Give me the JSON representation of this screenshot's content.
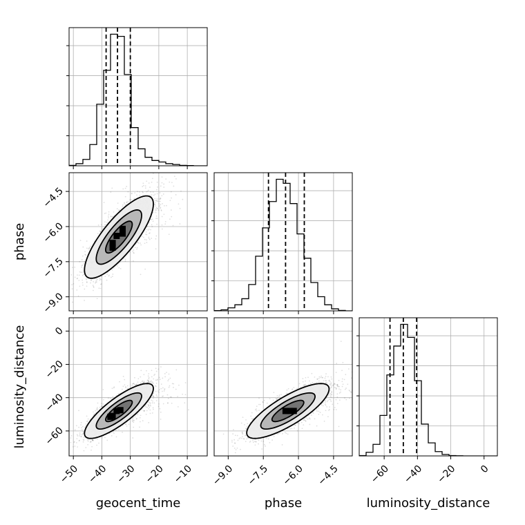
{
  "chart_data": {
    "type": "corner",
    "parameters": [
      "geocent_time",
      "phase",
      "luminosity_distance"
    ],
    "axis_labels": {
      "x": [
        "geocent_time",
        "phase",
        "luminosity_distance"
      ],
      "y": [
        "phase",
        "luminosity_distance"
      ]
    },
    "ranges": {
      "geocent_time": [
        -51.5,
        -3.0
      ],
      "phase": [
        -9.6,
        -3.7
      ],
      "luminosity_distance": [
        -75.0,
        8.0
      ]
    },
    "ticks": {
      "geocent_time": [
        -50,
        -40,
        -30,
        -20,
        -10
      ],
      "phase": [
        -9.0,
        -7.5,
        -6.0,
        -4.5
      ],
      "luminosity_distance": [
        -60,
        -40,
        -20,
        0
      ]
    },
    "tick_labels": {
      "geocent_time": [
        "−50",
        "−40",
        "−30",
        "−20",
        "−10"
      ],
      "phase": [
        "−9.0",
        "−7.5",
        "−6.0",
        "−4.5"
      ],
      "luminosity_distance": [
        "−60",
        "−40",
        "−20",
        "0"
      ]
    },
    "grid": true,
    "histograms": {
      "geocent_time": {
        "bin_edges": [
          -51.5,
          -49.075,
          -46.65,
          -44.225,
          -41.8,
          -39.375,
          -36.95,
          -34.525,
          -32.1,
          -29.675,
          -27.25,
          -24.825,
          -22.4,
          -19.975,
          -17.55,
          -15.125,
          -12.7,
          -10.275,
          -7.85,
          -5.425,
          -3.0
        ],
        "counts": [
          2,
          10,
          30,
          100,
          290,
          450,
          620,
          610,
          430,
          180,
          80,
          40,
          25,
          18,
          10,
          6,
          2,
          1,
          0,
          0
        ]
      },
      "phase": {
        "bin_edges": [
          -9.6,
          -9.305,
          -9.01,
          -8.715,
          -8.42,
          -8.125,
          -7.83,
          -7.535,
          -7.24,
          -6.945,
          -6.65,
          -6.355,
          -6.06,
          -5.765,
          -5.47,
          -5.175,
          -4.88,
          -4.585,
          -4.29,
          -3.995,
          -3.7
        ],
        "counts": [
          1,
          5,
          15,
          30,
          60,
          130,
          270,
          410,
          540,
          650,
          630,
          530,
          380,
          260,
          140,
          70,
          30,
          10,
          2,
          0
        ]
      },
      "luminosity_distance": {
        "bin_edges": [
          -75.0,
          -70.85,
          -66.7,
          -62.55,
          -58.4,
          -54.25,
          -50.1,
          -45.95,
          -41.8,
          -37.65,
          -33.5,
          -29.35,
          -25.2,
          -21.05,
          -16.9,
          -12.75,
          -8.6,
          -4.45,
          -0.3,
          3.85,
          8.0
        ],
        "counts": [
          2,
          25,
          80,
          280,
          560,
          760,
          910,
          820,
          520,
          220,
          90,
          30,
          10,
          2,
          1,
          0,
          0,
          0,
          0,
          0
        ]
      }
    },
    "quantiles": {
      "geocent_time": [
        -38.5,
        -34.5,
        -30.0
      ],
      "phase": [
        -7.28,
        -6.55,
        -5.75
      ],
      "luminosity_distance": [
        -56.5,
        -48.5,
        -40.5
      ]
    },
    "pairs": [
      {
        "x": "geocent_time",
        "y": "phase",
        "mean": [
          -34.0,
          -6.45
        ],
        "std": [
          5.5,
          0.8
        ],
        "corr": 0.8,
        "density_peak": [
          -34.5,
          -6.5
        ],
        "dense_cells": [
          [
            -32.7,
            -6.1
          ],
          [
            -32.7,
            -6.3
          ],
          [
            -34.8,
            -6.4
          ],
          [
            -36.2,
            -6.7
          ],
          [
            -36.2,
            -6.9
          ]
        ]
      },
      {
        "x": "geocent_time",
        "y": "luminosity_distance",
        "mean": [
          -34.0,
          -48.0
        ],
        "std": [
          5.5,
          7.5
        ],
        "corr": 0.82,
        "density_peak": [
          -34.5,
          -49.0
        ],
        "dense_cells": [
          [
            -33.5,
            -47.5
          ],
          [
            -34.8,
            -48.0
          ],
          [
            -37.0,
            -51.5
          ],
          [
            -36.2,
            -51.0
          ]
        ]
      },
      {
        "x": "phase",
        "y": "luminosity_distance",
        "mean": [
          -6.45,
          -48.0
        ],
        "std": [
          0.8,
          7.5
        ],
        "corr": 0.8,
        "density_peak": [
          -6.5,
          -48.5
        ],
        "dense_cells": [
          [
            -6.55,
            -48.0
          ],
          [
            -6.2,
            -48.0
          ],
          [
            -6.35,
            -48.0
          ]
        ]
      }
    ]
  }
}
